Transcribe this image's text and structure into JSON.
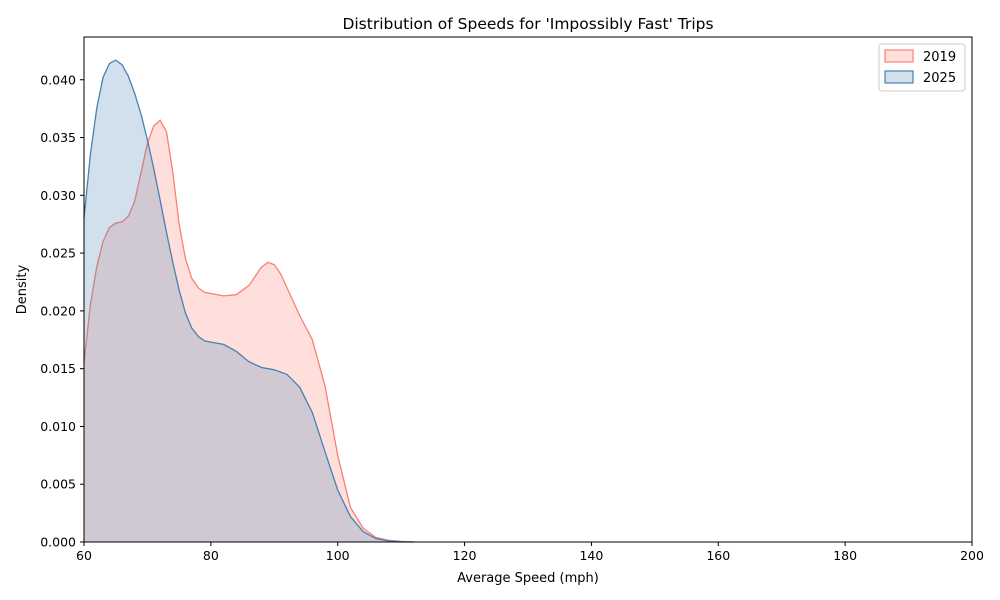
{
  "chart_data": {
    "type": "area",
    "title": "Distribution of Speeds for 'Impossibly Fast' Trips",
    "xlabel": "Average Speed (mph)",
    "ylabel": "Density",
    "xlim": [
      60,
      200
    ],
    "ylim": [
      0,
      0.0437
    ],
    "xticks": [
      60,
      80,
      100,
      120,
      140,
      160,
      180,
      200
    ],
    "yticks": [
      0.0,
      0.005,
      0.01,
      0.015,
      0.02,
      0.025,
      0.03,
      0.035,
      0.04
    ],
    "xtick_labels": [
      "60",
      "80",
      "100",
      "120",
      "140",
      "160",
      "180",
      "200"
    ],
    "ytick_labels": [
      "0.000",
      "0.005",
      "0.010",
      "0.015",
      "0.020",
      "0.025",
      "0.030",
      "0.035",
      "0.040"
    ],
    "grid": false,
    "legend_position": "top-right",
    "series": [
      {
        "name": "2019",
        "color": "#fa8072",
        "fill_color": "#fa8072",
        "points": [
          [
            60,
            0.0155
          ],
          [
            61,
            0.0205
          ],
          [
            62,
            0.0238
          ],
          [
            63,
            0.026
          ],
          [
            64,
            0.0272
          ],
          [
            65,
            0.0276
          ],
          [
            66,
            0.0277
          ],
          [
            67,
            0.0282
          ],
          [
            68,
            0.0295
          ],
          [
            69,
            0.032
          ],
          [
            70,
            0.0345
          ],
          [
            71,
            0.036
          ],
          [
            72,
            0.0365
          ],
          [
            73,
            0.0355
          ],
          [
            74,
            0.032
          ],
          [
            75,
            0.0275
          ],
          [
            76,
            0.0245
          ],
          [
            77,
            0.0228
          ],
          [
            78,
            0.022
          ],
          [
            79,
            0.0216
          ],
          [
            80,
            0.0215
          ],
          [
            82,
            0.0213
          ],
          [
            84,
            0.0214
          ],
          [
            86,
            0.0222
          ],
          [
            88,
            0.0238
          ],
          [
            89,
            0.0242
          ],
          [
            90,
            0.024
          ],
          [
            91,
            0.0232
          ],
          [
            92,
            0.022
          ],
          [
            94,
            0.0196
          ],
          [
            96,
            0.0175
          ],
          [
            98,
            0.0135
          ],
          [
            100,
            0.0075
          ],
          [
            102,
            0.003
          ],
          [
            104,
            0.0012
          ],
          [
            106,
            0.0004
          ],
          [
            108,
            0.00015
          ],
          [
            110,
            5e-05
          ],
          [
            112,
            0.0
          ]
        ]
      },
      {
        "name": "2025",
        "color": "#4682b4",
        "fill_color": "#4682b4",
        "points": [
          [
            60,
            0.028
          ],
          [
            61,
            0.0335
          ],
          [
            62,
            0.0375
          ],
          [
            63,
            0.0402
          ],
          [
            64,
            0.0414
          ],
          [
            65,
            0.0417
          ],
          [
            66,
            0.0413
          ],
          [
            67,
            0.0403
          ],
          [
            68,
            0.0388
          ],
          [
            69,
            0.037
          ],
          [
            70,
            0.0348
          ],
          [
            71,
            0.0323
          ],
          [
            72,
            0.0296
          ],
          [
            73,
            0.0268
          ],
          [
            74,
            0.0242
          ],
          [
            75,
            0.0218
          ],
          [
            76,
            0.0198
          ],
          [
            77,
            0.0185
          ],
          [
            78,
            0.0178
          ],
          [
            79,
            0.0174
          ],
          [
            80,
            0.0173
          ],
          [
            82,
            0.0171
          ],
          [
            84,
            0.0165
          ],
          [
            86,
            0.0156
          ],
          [
            88,
            0.0151
          ],
          [
            90,
            0.0149
          ],
          [
            92,
            0.0145
          ],
          [
            94,
            0.0134
          ],
          [
            96,
            0.0112
          ],
          [
            98,
            0.0078
          ],
          [
            100,
            0.0045
          ],
          [
            102,
            0.0022
          ],
          [
            104,
            0.0009
          ],
          [
            106,
            0.0003
          ],
          [
            108,
            0.0001
          ],
          [
            110,
            2e-05
          ],
          [
            112,
            0.0
          ]
        ]
      }
    ]
  }
}
